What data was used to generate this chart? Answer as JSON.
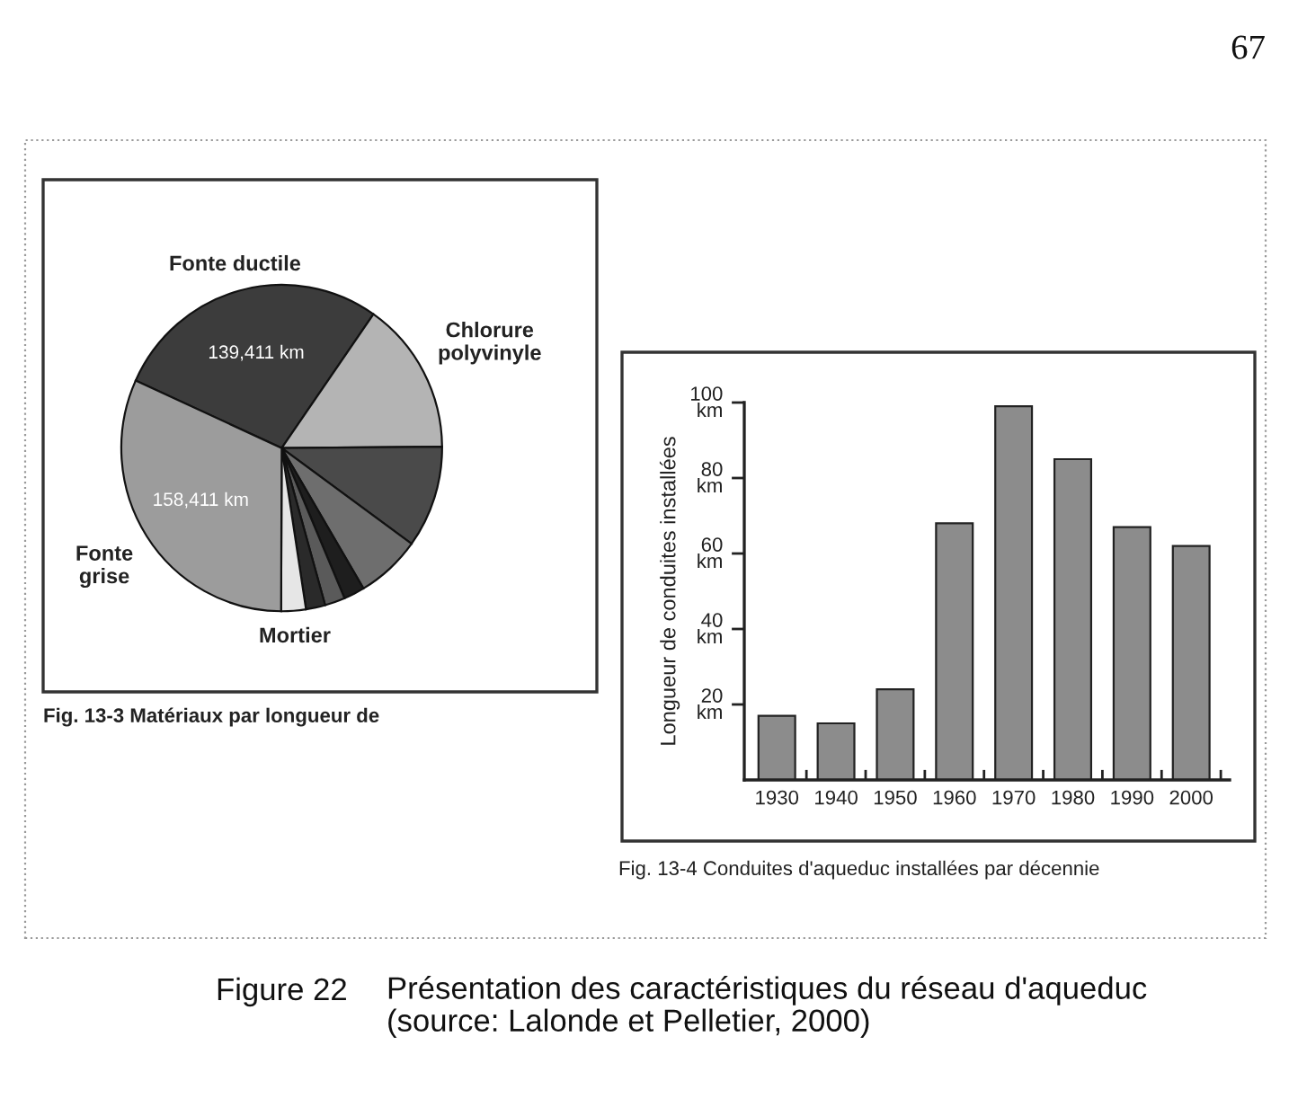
{
  "chart_data": [
    {
      "type": "pie",
      "title": "Fig. 13-3 Matériaux par longueur de",
      "categories": [
        "Fonte ductile",
        "Chlorure\npolyvinyle",
        null,
        null,
        null,
        null,
        null,
        "Mortier",
        "Fonte\ngrise"
      ],
      "values": [
        139411,
        75800,
        50500,
        32500,
        10500,
        10200,
        9700,
        12400,
        158411
      ],
      "colors": [
        "#3c3c3c",
        "#b4b4b4",
        "#4a4a4a",
        "#6e6e6e",
        "#1e1e1e",
        "#5a5a5a",
        "#2a2a2a",
        "#e6e6e6",
        "#9c9c9c"
      ],
      "value_labels": [
        "139,411 km",
        null,
        null,
        null,
        null,
        null,
        null,
        null,
        "158,411 km"
      ],
      "annotations": [
        "67",
        "Figure 22",
        "Présentation des caractéristiques du réseau d'aqueduc\n(source: Lalonde et Pelletier, 2000)"
      ]
    },
    {
      "type": "bar",
      "title": "Fig. 13-4 Conduites d'aqueduc installées par décennie",
      "categories": [
        "1930",
        "1940",
        "1950",
        "1960",
        "1970",
        "1980",
        "1990",
        "2000"
      ],
      "values": [
        17,
        15,
        24,
        68,
        99,
        85,
        67,
        62
      ],
      "color": "#8c8c8c",
      "ylabel": "Longueur de conduites installées",
      "ylim": [
        0,
        100
      ],
      "yticks": [
        {
          "value": 20,
          "label": "20\nkm"
        },
        {
          "value": 40,
          "label": "40\nkm"
        },
        {
          "value": 60,
          "label": "60\nkm"
        },
        {
          "value": 80,
          "label": "80\nkm"
        },
        {
          "value": 100,
          "label": "100\nkm"
        }
      ]
    }
  ]
}
